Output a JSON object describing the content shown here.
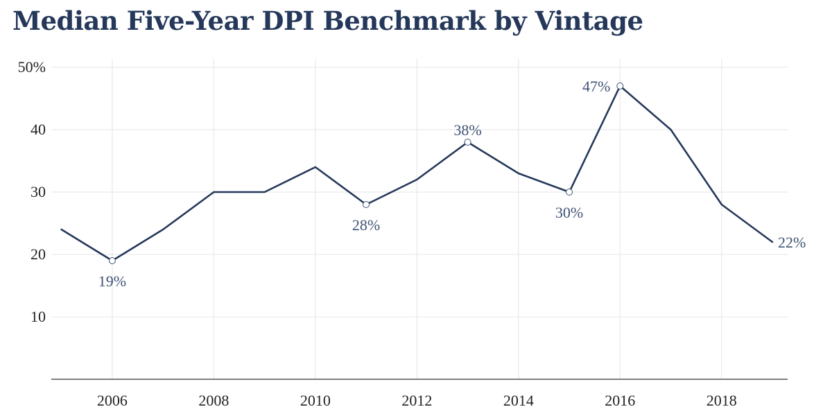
{
  "chart_data": {
    "type": "line",
    "title": "Median Five-Year DPI Benchmark by Vintage",
    "xlabel": "",
    "ylabel": "",
    "xlim": [
      2005,
      2019
    ],
    "ylim": [
      0,
      50
    ],
    "grid": true,
    "x_ticks": [
      2006,
      2008,
      2010,
      2012,
      2014,
      2016,
      2018
    ],
    "x_tick_labels": [
      "2006",
      "2008",
      "2010",
      "2012",
      "2014",
      "2016",
      "2018"
    ],
    "y_ticks": [
      10,
      20,
      30,
      40,
      50
    ],
    "y_tick_labels": [
      "10",
      "20",
      "30",
      "40",
      "50%"
    ],
    "series": [
      {
        "name": "Median five-year DPI",
        "color": "#25385a",
        "x": [
          2005,
          2006,
          2007,
          2008,
          2009,
          2010,
          2011,
          2012,
          2013,
          2014,
          2015,
          2016,
          2017,
          2018,
          2019
        ],
        "values": [
          24,
          19,
          24,
          30,
          30,
          34,
          28,
          32,
          38,
          33,
          30,
          47,
          40,
          28,
          22
        ]
      }
    ],
    "annotations": [
      {
        "x": 2006,
        "y": 19,
        "label": "19%",
        "marker": true,
        "placement": "below"
      },
      {
        "x": 2011,
        "y": 28,
        "label": "28%",
        "marker": true,
        "placement": "below"
      },
      {
        "x": 2013,
        "y": 38,
        "label": "38%",
        "marker": true,
        "placement": "above"
      },
      {
        "x": 2015,
        "y": 30,
        "label": "30%",
        "marker": true,
        "placement": "below"
      },
      {
        "x": 2016,
        "y": 47,
        "label": "47%",
        "marker": true,
        "placement": "left"
      },
      {
        "x": 2019,
        "y": 22,
        "label": "22%",
        "marker": false,
        "placement": "right"
      }
    ]
  }
}
